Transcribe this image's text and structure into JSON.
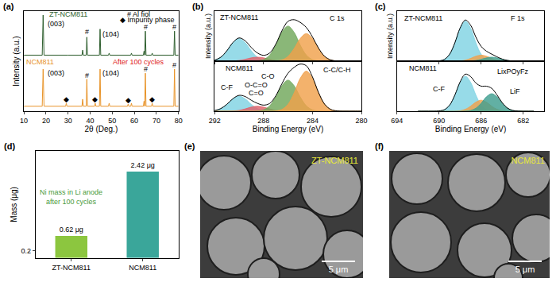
{
  "chart_data": [
    {
      "type": "line",
      "title": "(a)",
      "xlabel": "2θ (Deg.)",
      "ylabel": "Intensity (a.u.)",
      "xlim": [
        10,
        80
      ],
      "xticks": [
        10,
        20,
        30,
        40,
        50,
        60,
        70,
        80
      ],
      "ylim": [
        0,
        100
      ],
      "tick_labels": "x",
      "series": [
        {
          "color": "#2f5f2f",
          "x": [
            10,
            18.3,
            18.7,
            19.1,
            30,
            36.3,
            36.6,
            36.9,
            38.2,
            38.5,
            38.8,
            44.2,
            44.5,
            44.8,
            48.3,
            48.6,
            48.9,
            58.4,
            58.7,
            59.0,
            64.1,
            64.4,
            64.7,
            65.0,
            65.3,
            67.8,
            68.1,
            68.4,
            77.9,
            78.2,
            78.5,
            80
          ],
          "values": [
            56,
            56,
            96,
            56,
            56,
            56,
            61,
            56,
            56,
            74,
            56,
            56,
            82,
            56,
            56,
            58,
            56,
            56,
            58,
            56,
            56,
            60,
            56,
            80,
            56,
            56,
            58,
            56,
            56,
            80,
            56,
            56
          ]
        },
        {
          "color": "#e8942a",
          "x": [
            10,
            18.3,
            18.7,
            19.1,
            28.9,
            29.2,
            29.5,
            36.3,
            36.6,
            36.9,
            38.2,
            38.5,
            38.8,
            42.0,
            42.3,
            42.6,
            44.2,
            44.5,
            44.8,
            48.3,
            48.6,
            48.9,
            56.9,
            57.2,
            57.5,
            58.4,
            58.7,
            59.0,
            64.1,
            64.4,
            64.7,
            65.0,
            65.3,
            67.8,
            68.1,
            68.4,
            77.9,
            78.2,
            78.5,
            80
          ],
          "values": [
            5,
            5,
            42,
            5,
            5,
            8,
            5,
            5,
            12,
            5,
            5,
            32,
            5,
            5,
            8,
            5,
            5,
            42,
            5,
            5,
            8,
            5,
            5,
            7,
            5,
            5,
            8,
            5,
            5,
            10,
            5,
            38,
            5,
            5,
            8,
            5,
            5,
            42,
            5,
            5
          ]
        }
      ],
      "annotations": [
        {
          "text": "ZT-NCM811",
          "x": 30,
          "y": 97,
          "color": "#2f5f2f"
        },
        {
          "text": "(003)",
          "x": 24.5,
          "y": 87
        },
        {
          "text": "(104)",
          "x": 49.5,
          "y": 77
        },
        {
          "text": "#",
          "x": 38.5,
          "y": 79
        },
        {
          "text": "#",
          "x": 65,
          "y": 84
        },
        {
          "text": "#",
          "x": 78.2,
          "y": 84
        },
        {
          "text": "# Al fiol",
          "x": 62,
          "y": 97
        },
        {
          "text": "◆ Impurity phase",
          "x": 66,
          "y": 91
        },
        {
          "text": "NCM811",
          "x": 17.5,
          "y": 49,
          "color": "#e8942a"
        },
        {
          "text": "After 100 cycles",
          "x": 62,
          "y": 49,
          "color": "#e02020"
        },
        {
          "text": "(003)",
          "x": 24.5,
          "y": 38
        },
        {
          "text": "(104)",
          "x": 49.5,
          "y": 38
        },
        {
          "text": "#",
          "x": 38.5,
          "y": 36
        },
        {
          "text": "#",
          "x": 65,
          "y": 42
        },
        {
          "text": "#",
          "x": 78.2,
          "y": 46
        },
        {
          "text": "◆",
          "x": 29.2,
          "y": 12
        },
        {
          "text": "◆",
          "x": 42.3,
          "y": 12
        },
        {
          "text": "◆",
          "x": 57.2,
          "y": 11
        },
        {
          "text": "◆",
          "x": 68.1,
          "y": 12
        }
      ]
    },
    {
      "type": "line",
      "title": "(b)",
      "ylabel": "Intensity (a.u.)",
      "xlim": [
        292,
        280
      ],
      "xticks": [
        292,
        288,
        284,
        280
      ],
      "ylim": [
        0,
        100
      ],
      "tick_labels": false,
      "x": [
        280,
        280.5,
        281,
        281.5,
        282,
        282.5,
        283,
        283.5,
        284,
        284.5,
        285,
        285.5,
        286,
        286.5,
        287,
        287.5,
        288,
        288.5,
        289,
        289.5,
        290,
        290.5,
        291,
        291.5,
        292
      ],
      "series": [
        {
          "type": "area",
          "color": "#7fd3e3",
          "values": [
            0,
            0,
            0,
            0,
            0,
            0,
            0,
            0,
            0,
            0,
            0,
            0,
            0,
            0,
            0,
            0.4,
            2.0,
            7.8,
            20.6,
            37.0,
            45,
            37.0,
            20.6,
            7.8,
            2.0
          ]
        },
        {
          "type": "area",
          "color": "#e0606a",
          "values": [
            0,
            0,
            0,
            0,
            0,
            0,
            0,
            0,
            0,
            0,
            0,
            0,
            0.1,
            0.4,
            1.4,
            3.7,
            6.6,
            8,
            6.6,
            3.7,
            1.4,
            0.4,
            0.1,
            0,
            0
          ]
        },
        {
          "type": "area",
          "color": "#6fa75a",
          "values": [
            0,
            0,
            0,
            0,
            0,
            0,
            0,
            0.6,
            3.1,
            12.1,
            32.1,
            57.6,
            70,
            57.6,
            32.1,
            12.1,
            3.1,
            0.6,
            0,
            0,
            0,
            0,
            0,
            0,
            0
          ]
        },
        {
          "type": "area",
          "color": "#f0a04b",
          "values": [
            0,
            0,
            0,
            0,
            0.4,
            2.4,
            9.5,
            25.2,
            45.3,
            55,
            45.3,
            25.2,
            9.5,
            2.4,
            0.4,
            0,
            0,
            0,
            0,
            0,
            0,
            0,
            0,
            0,
            0
          ]
        },
        {
          "type": "line",
          "color": "#000000",
          "values": [
            0,
            0,
            0,
            0,
            0.4,
            2.4,
            9.5,
            25.8,
            48.4,
            67.1,
            77.4,
            82.8,
            79.6,
            60.4,
            33.9,
            16.2,
            11.7,
            16.4,
            27.2,
            40.7,
            46.4,
            37.4,
            20.7,
            7.8,
            2.0
          ]
        }
      ],
      "annotations": [
        {
          "text": "ZT-NCM811",
          "x": 290,
          "y": 88
        },
        {
          "text": "C 1s",
          "x": 282,
          "y": 85
        }
      ]
    },
    {
      "type": "line",
      "xlabel": "Binding Energy (eV)",
      "xlim": [
        292,
        280
      ],
      "xticks": [
        292,
        288,
        284,
        280
      ],
      "ylim": [
        0,
        100
      ],
      "tick_labels": "x",
      "x": [
        280,
        280.5,
        281,
        281.5,
        282,
        282.5,
        283,
        283.5,
        284,
        284.5,
        285,
        285.5,
        286,
        286.5,
        287,
        287.5,
        288,
        288.5,
        289,
        289.5,
        290,
        290.5,
        291,
        291.5,
        292
      ],
      "series": [
        {
          "type": "area",
          "color": "#7fd3e3",
          "values": [
            0,
            0,
            0,
            0,
            0,
            0,
            0,
            0,
            0,
            0,
            0,
            0,
            0,
            0,
            0,
            0.2,
            1.3,
            5.2,
            13.7,
            24.7,
            30,
            24.7,
            13.7,
            5.2,
            1.3
          ]
        },
        {
          "type": "area",
          "color": "#e0606a",
          "values": [
            0,
            0,
            0,
            0,
            0,
            0,
            0,
            0,
            0,
            0,
            0,
            0,
            0.1,
            0.4,
            1.7,
            4.6,
            8.2,
            10,
            8.2,
            4.6,
            1.7,
            0.4,
            0.1,
            0,
            0
          ]
        },
        {
          "type": "area",
          "color": "#6fa75a",
          "values": [
            0,
            0,
            0,
            0,
            0,
            0,
            0,
            0.5,
            2.7,
            10.7,
            28.4,
            51.0,
            62,
            51.0,
            28.4,
            10.7,
            2.7,
            0.5,
            0,
            0,
            0,
            0,
            0,
            0,
            0
          ]
        },
        {
          "type": "area",
          "color": "#f0a04b",
          "values": [
            0,
            0,
            0,
            0,
            0.6,
            3.5,
            13.8,
            36.6,
            65.8,
            80,
            65.8,
            36.6,
            13.8,
            3.5,
            0.6,
            0,
            0,
            0,
            0,
            0,
            0,
            0,
            0,
            0,
            0
          ]
        },
        {
          "type": "line",
          "color": "#000000",
          "values": [
            0,
            0,
            0,
            0,
            0.6,
            3.5,
            13.8,
            37.1,
            68.5,
            90.7,
            94.2,
            87.6,
            75.9,
            54.9,
            30.7,
            15.5,
            12.2,
            15.7,
            21.9,
            29.3,
            31.7,
            25.1,
            13.8,
            5.2,
            1.3
          ]
        }
      ],
      "annotations": [
        {
          "text": "NCM811",
          "x": 290,
          "y": 85
        },
        {
          "text": "C-F",
          "x": 291,
          "y": 48
        },
        {
          "text": "O-C=O",
          "x": 288.6,
          "y": 52
        },
        {
          "text": "C=O",
          "x": 288.6,
          "y": 36
        },
        {
          "text": "C-O",
          "x": 287.6,
          "y": 70
        },
        {
          "text": "C-C/C-H",
          "x": 282,
          "y": 82
        }
      ]
    },
    {
      "type": "line",
      "title": "(c)",
      "ylabel": "Intensity (a.u.)",
      "xlim": [
        694,
        680
      ],
      "xticks": [
        694,
        690,
        686,
        682
      ],
      "ylim": [
        0,
        100
      ],
      "tick_labels": false,
      "x": [
        681,
        681.5,
        682,
        682.5,
        683,
        683.5,
        684,
        684.5,
        685,
        685.5,
        686,
        686.5,
        687,
        687.5,
        688,
        688.5,
        689,
        689.5,
        690,
        690.5,
        691,
        691.5,
        692
      ],
      "series": [
        {
          "type": "area",
          "color": "#7fd3e3",
          "values": [
            0,
            0,
            0,
            0,
            0,
            0,
            0,
            0,
            0.6,
            3.5,
            13.8,
            36.6,
            65.8,
            80,
            65.8,
            36.6,
            13.8,
            3.5,
            0.6,
            0,
            0,
            0,
            0
          ]
        },
        {
          "type": "area",
          "color": "#f0a04b",
          "values": [
            0,
            0,
            0,
            0,
            0,
            0.1,
            0.5,
            2.1,
            5.5,
            9.9,
            12,
            9.9,
            5.5,
            2.1,
            0.5,
            0.1,
            0,
            0,
            0,
            0,
            0,
            0,
            0
          ]
        },
        {
          "type": "area",
          "color": "#3f9e8f",
          "values": [
            0,
            0,
            0,
            0.1,
            0.4,
            1.4,
            3.7,
            6.6,
            8,
            6.6,
            3.7,
            1.4,
            0.4,
            0.1,
            0,
            0,
            0,
            0,
            0,
            0,
            0,
            0,
            0
          ]
        },
        {
          "type": "line",
          "color": "#000000",
          "values": [
            0,
            0,
            0,
            0.1,
            0.4,
            1.5,
            4.2,
            8.7,
            14.1,
            20.0,
            29.5,
            47.9,
            71.7,
            82.2,
            66.3,
            36.7,
            13.8,
            3.5,
            0.6,
            0,
            0,
            0,
            0
          ]
        }
      ],
      "annotations": [
        {
          "text": "ZT-NCM811",
          "x": 691.5,
          "y": 85
        },
        {
          "text": "F 1s",
          "x": 682.5,
          "y": 85
        }
      ]
    },
    {
      "type": "line",
      "xlabel": "Binding Energy (eV)",
      "xlim": [
        694,
        680
      ],
      "xticks": [
        694,
        690,
        686,
        682
      ],
      "ylim": [
        0,
        100
      ],
      "tick_labels": "x",
      "x": [
        681,
        681.5,
        682,
        682.5,
        683,
        683.5,
        684,
        684.5,
        685,
        685.5,
        686,
        686.5,
        687,
        687.5,
        688,
        688.5,
        689,
        689.5,
        690,
        690.5,
        691,
        691.5,
        692
      ],
      "series": [
        {
          "type": "area",
          "color": "#7fd3e3",
          "values": [
            0,
            0,
            0,
            0,
            0,
            0,
            0,
            0,
            0.6,
            3.1,
            12.1,
            32.1,
            57.6,
            70,
            57.6,
            32.1,
            12.1,
            3.1,
            0.6,
            0,
            0,
            0,
            0
          ]
        },
        {
          "type": "area",
          "color": "#f0a04b",
          "values": [
            0,
            0,
            0,
            0,
            0,
            0.2,
            1.0,
            3.8,
            10.1,
            18.1,
            22,
            18.1,
            10.1,
            3.8,
            1.0,
            0.2,
            0,
            0,
            0,
            0,
            0,
            0,
            0
          ]
        },
        {
          "type": "area",
          "color": "#3f9e8f",
          "values": [
            0,
            0,
            0,
            0.3,
            1.5,
            6.1,
            16.0,
            28.8,
            35,
            28.8,
            16.0,
            6.1,
            1.5,
            0.3,
            0,
            0,
            0,
            0,
            0,
            0,
            0,
            0,
            0
          ]
        },
        {
          "type": "line",
          "color": "#000000",
          "values": [
            0,
            0,
            0,
            0.3,
            1.5,
            6.3,
            17.0,
            32.6,
            45.7,
            50.0,
            50.1,
            56.3,
            69.2,
            74.1,
            58.6,
            32.3,
            12.1,
            3.1,
            0.6,
            0,
            0,
            0,
            0
          ]
        }
      ],
      "annotations": [
        {
          "text": "NCM811",
          "x": 691.5,
          "y": 85
        },
        {
          "text": "C-F",
          "x": 690,
          "y": 45
        },
        {
          "text": "LixPOyFz",
          "x": 683,
          "y": 80
        },
        {
          "text": "LiF",
          "x": 682.8,
          "y": 40
        }
      ]
    },
    {
      "type": "bar",
      "title": "(d)",
      "ylabel": "Mass (μg)",
      "categories": [
        "ZT-NCM811",
        "NCM811"
      ],
      "values": [
        0.62,
        2.42
      ],
      "value_labels": [
        "0.62 μg",
        "2.42 μg"
      ],
      "data_labels": true,
      "colors": [
        "#8cc63f",
        "#3aa69a"
      ],
      "ylim": [
        0,
        3
      ],
      "yticks": [
        0.2
      ],
      "annotations": [
        {
          "text": "Ni mass in Li anode\nafter 100 cycles",
          "x": 0,
          "y": 1.7,
          "color": "#4a9a3a"
        }
      ]
    }
  ],
  "images": [
    {
      "title": "(e)",
      "label": "ZT-NCM811",
      "scale_bar": "5 μm"
    },
    {
      "title": "(f)",
      "label": "NCM811",
      "scale_bar": "5 μm"
    }
  ]
}
